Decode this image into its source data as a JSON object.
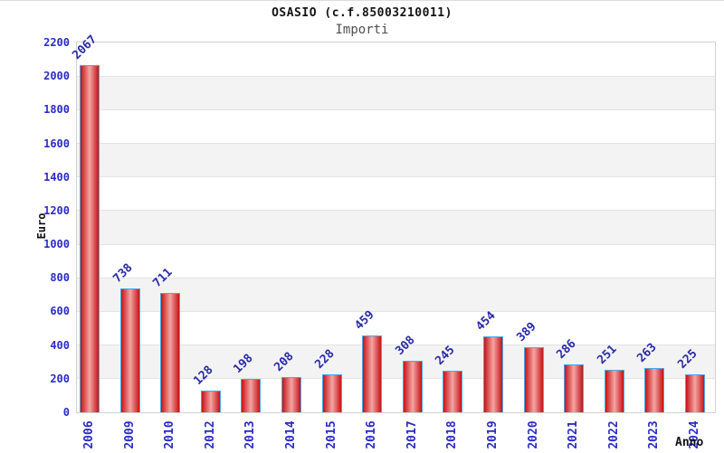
{
  "chart_data": {
    "type": "bar",
    "title": "OSASIO (c.f.85003210011)",
    "subtitle": "Importi",
    "xlabel": "Anno",
    "ylabel": "Euro",
    "categories": [
      "2006",
      "2009",
      "2010",
      "2012",
      "2013",
      "2014",
      "2015",
      "2016",
      "2017",
      "2018",
      "2019",
      "2020",
      "2021",
      "2022",
      "2023",
      "2024"
    ],
    "values": [
      2067,
      738,
      711,
      128,
      198,
      208,
      228,
      459,
      308,
      245,
      454,
      389,
      286,
      251,
      263,
      225
    ],
    "ylim": [
      0,
      2200
    ],
    "ytick_step": 200,
    "ytick_labels": [
      "0",
      "200",
      "400",
      "600",
      "800",
      "1000",
      "1200",
      "1400",
      "1600",
      "1800",
      "2000",
      "2200"
    ],
    "grid": true,
    "legend_position": "none",
    "colors": {
      "bar_edge": "#c61316",
      "bar_center": "#f4a5a3",
      "bar_border": "#4da6e8",
      "tick_label": "#2b2bc8",
      "value_label": "#2a2aa8",
      "band_gray": "#f3f3f3",
      "band_white": "#ffffff",
      "gridline": "#e3e3e3",
      "plot_border": "#d2d2d2",
      "title_color": "#141414",
      "subtitle_color": "#4f4f4f",
      "axis_title_color": "#111111"
    }
  }
}
